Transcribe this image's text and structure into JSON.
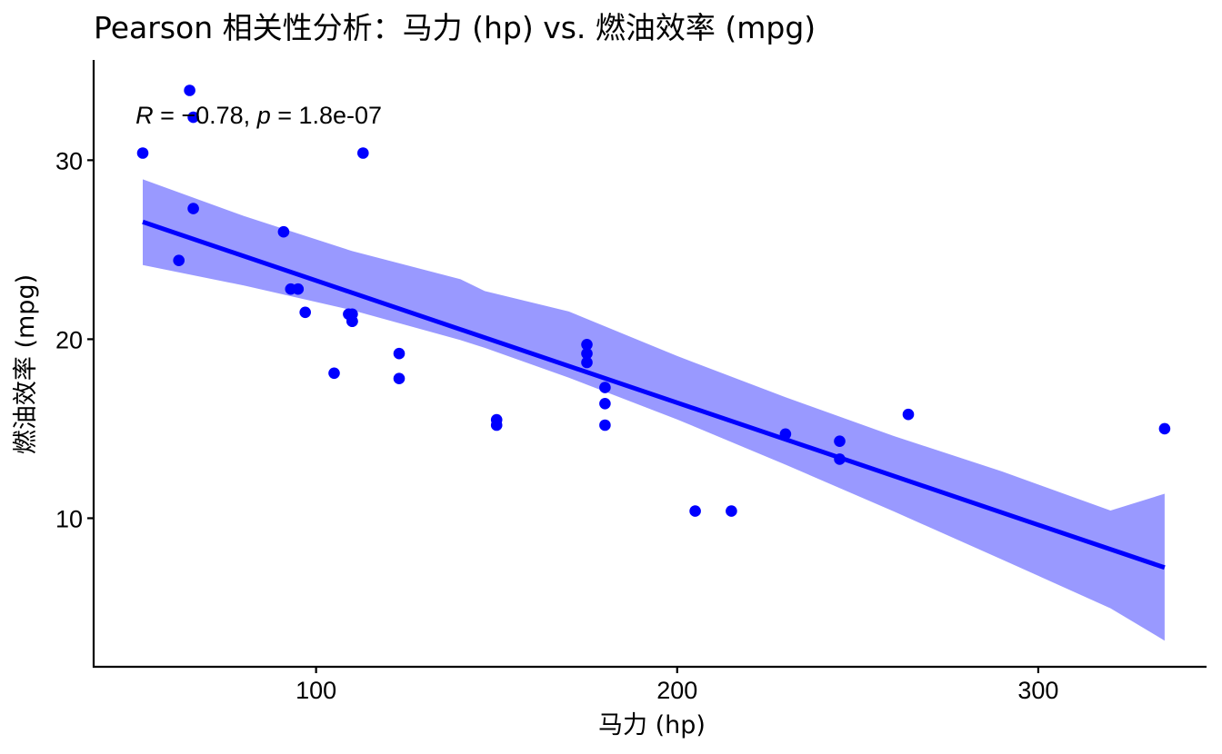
{
  "chart_data": {
    "type": "scatter",
    "title": "Pearson 相关性分析：马力 (hp) vs. 燃油效率 (mpg)",
    "xlabel": "马力 (hp)",
    "ylabel": "燃油效率 (mpg)",
    "xlim": [
      38.4,
      346.6
    ],
    "ylim": [
      1.7,
      35.6
    ],
    "x_ticks": [
      100,
      200,
      300
    ],
    "y_ticks": [
      10,
      20,
      30
    ],
    "grid": false,
    "legend": "none",
    "point_color": "#0000FF",
    "line_color": "#0000FF",
    "band_color": "#9999FF",
    "annotation": {
      "r_symbol": "R",
      "r_text": " = −0.78, ",
      "p_symbol": "p",
      "p_text": " = 1.8e-07",
      "x": 50,
      "y": 32.5
    },
    "series": [
      {
        "x": [
          110,
          110,
          93,
          110,
          175,
          105,
          245,
          62,
          95,
          123,
          123,
          180,
          180,
          180,
          205,
          215,
          230,
          66,
          52,
          65,
          97,
          150,
          150,
          245,
          175,
          66,
          91,
          113,
          264,
          175,
          335,
          109
        ],
        "y": [
          21.0,
          21.0,
          22.8,
          21.4,
          18.7,
          18.1,
          14.3,
          24.4,
          22.8,
          19.2,
          17.8,
          16.4,
          17.3,
          15.2,
          10.4,
          10.4,
          14.7,
          32.4,
          30.4,
          33.9,
          21.5,
          15.5,
          15.2,
          13.3,
          19.2,
          27.3,
          26.0,
          30.4,
          15.8,
          19.7,
          15.0,
          21.4
        ]
      }
    ],
    "regression": {
      "intercept": 30.0989,
      "slope": -0.06823,
      "x_range": [
        52,
        335
      ],
      "band_x": [
        52,
        80,
        110,
        140,
        146.7,
        170,
        200,
        230,
        260,
        290,
        320,
        335
      ],
      "band_lower": [
        24.14,
        23.0,
        21.62,
        19.95,
        19.52,
        17.85,
        15.52,
        12.99,
        10.38,
        7.69,
        4.97,
        3.16
      ],
      "band_upper": [
        28.93,
        26.88,
        24.92,
        23.35,
        22.69,
        21.55,
        19.06,
        16.76,
        14.59,
        12.61,
        10.43,
        11.37
      ]
    }
  }
}
